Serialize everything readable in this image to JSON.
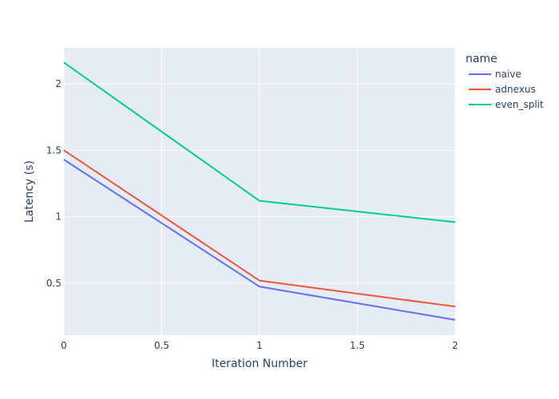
{
  "chart_data": {
    "type": "line",
    "xlabel": "Iteration Number",
    "ylabel": "Latency (s)",
    "xlim": [
      0,
      2
    ],
    "ylim": [
      0.11,
      2.27
    ],
    "x_ticks": [
      0,
      0.5,
      1,
      1.5,
      2
    ],
    "y_ticks": [
      0.5,
      1,
      1.5,
      2
    ],
    "x_tick_labels": [
      "0",
      "0.5",
      "1",
      "1.5",
      "2"
    ],
    "y_tick_labels": [
      "0.5",
      "1",
      "1.5",
      "2"
    ],
    "grid": true,
    "plot_background": "#e5ecf6",
    "legend": {
      "title": "name",
      "position": "right"
    },
    "x": [
      0,
      1,
      2
    ],
    "series": [
      {
        "name": "naive",
        "color": "#636efa",
        "values": [
          1.43,
          0.475,
          0.225
        ]
      },
      {
        "name": "adnexus",
        "color": "#ef553b",
        "values": [
          1.5,
          0.52,
          0.325
        ]
      },
      {
        "name": "even_split",
        "color": "#00cc96",
        "values": [
          2.16,
          1.12,
          0.96
        ]
      }
    ]
  }
}
